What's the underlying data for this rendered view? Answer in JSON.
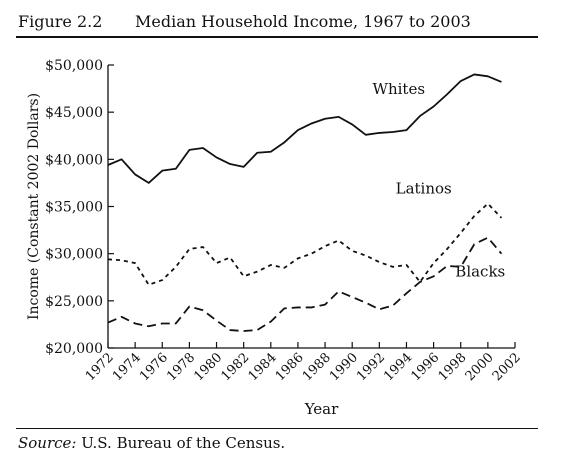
{
  "figure": {
    "number": "Figure 2.2",
    "title": "Median Household Income, 1967 to 2003",
    "source_label": "Source:",
    "source_text": "U.S. Bureau of the Census."
  },
  "chart_data": {
    "type": "line",
    "title": "Median Household Income, 1967 to 2003",
    "xlabel": "Year",
    "ylabel": "Income (Constant 2002 Dollars)",
    "xlim": [
      1972,
      2002
    ],
    "ylim": [
      20000,
      50000
    ],
    "grid": false,
    "x_ticks": [
      1972,
      1974,
      1976,
      1978,
      1980,
      1982,
      1984,
      1986,
      1988,
      1990,
      1992,
      1994,
      1996,
      1998,
      2000,
      2002
    ],
    "y_ticks": [
      20000,
      25000,
      30000,
      35000,
      40000,
      45000,
      50000
    ],
    "y_tick_labels": [
      "$20,000",
      "$25,000",
      "$30,000",
      "$35,000",
      "$40,000",
      "$45,000",
      "$50,000"
    ],
    "x": [
      1972,
      1973,
      1974,
      1975,
      1976,
      1977,
      1978,
      1979,
      1980,
      1981,
      1982,
      1983,
      1984,
      1985,
      1986,
      1987,
      1988,
      1989,
      1990,
      1991,
      1992,
      1993,
      1994,
      1995,
      1996,
      1997,
      1998,
      1999,
      2000,
      2001
    ],
    "series": [
      {
        "name": "Whites",
        "line_style": "solid",
        "values": [
          39400,
          40000,
          38400,
          37500,
          38800,
          39000,
          41000,
          41200,
          40200,
          39500,
          39200,
          40700,
          40800,
          41800,
          43100,
          43800,
          44300,
          44500,
          43700,
          42600,
          42800,
          42900,
          43100,
          44600,
          45600,
          46900,
          48300,
          49000,
          48800,
          48200
        ]
      },
      {
        "name": "Latinos",
        "line_style": "short-dash",
        "values": [
          29400,
          29300,
          29000,
          26700,
          27200,
          28600,
          30500,
          30700,
          29000,
          29600,
          27600,
          28100,
          28800,
          28500,
          29500,
          30000,
          30800,
          31400,
          30300,
          29800,
          29100,
          28600,
          28800,
          27000,
          29000,
          30500,
          32200,
          34000,
          35300,
          33800
        ]
      },
      {
        "name": "Blacks",
        "line_style": "long-dash",
        "values": [
          22700,
          23300,
          22600,
          22300,
          22600,
          22600,
          24400,
          24000,
          22900,
          21900,
          21800,
          21900,
          22800,
          24200,
          24300,
          24300,
          24600,
          26000,
          25400,
          24800,
          24100,
          24500,
          25800,
          27000,
          27600,
          28700,
          28600,
          31000,
          31700,
          30000
        ]
      }
    ]
  }
}
